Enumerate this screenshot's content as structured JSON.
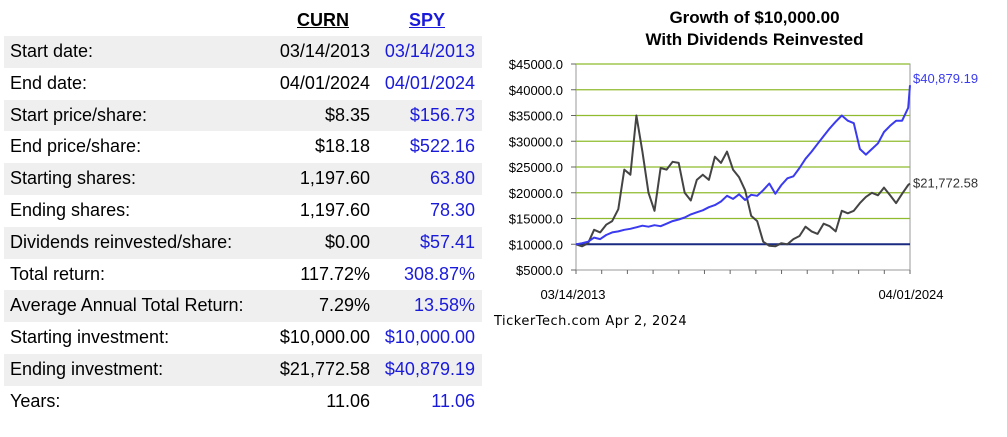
{
  "table": {
    "col1_header": "CURN",
    "col2_header": "SPY",
    "rows": [
      {
        "label": "Start date:",
        "v1": "03/14/2013",
        "v2": "03/14/2013"
      },
      {
        "label": "End date:",
        "v1": "04/01/2024",
        "v2": "04/01/2024"
      },
      {
        "label": "Start price/share:",
        "v1": "$8.35",
        "v2": "$156.73"
      },
      {
        "label": "End price/share:",
        "v1": "$18.18",
        "v2": "$522.16"
      },
      {
        "label": "Starting shares:",
        "v1": "1,197.60",
        "v2": "63.80"
      },
      {
        "label": "Ending shares:",
        "v1": "1,197.60",
        "v2": "78.30"
      },
      {
        "label": "Dividends reinvested/share:",
        "v1": "$0.00",
        "v2": "$57.41"
      },
      {
        "label": "Total return:",
        "v1": "117.72%",
        "v2": "308.87%"
      },
      {
        "label": "Average Annual Total Return:",
        "v1": "7.29%",
        "v2": "13.58%"
      },
      {
        "label": "Starting investment:",
        "v1": "$10,000.00",
        "v2": "$10,000.00"
      },
      {
        "label": "Ending investment:",
        "v1": "$21,772.58",
        "v2": "$40,879.19"
      },
      {
        "label": "Years:",
        "v1": "11.06",
        "v2": "11.06"
      }
    ]
  },
  "chart": {
    "title_line1": "Growth of $10,000.00",
    "title_line2": "With Dividends Reinvested",
    "credit": "TickerTech.com  Apr 2, 2024",
    "x_start_label": "03/14/2013",
    "x_end_label": "04/01/2024"
  },
  "colors": {
    "curn": "#444444",
    "spy": "#3a3af0",
    "grid": "#8fbc2e",
    "baseline": "#1a2a80"
  },
  "chart_data": {
    "type": "line",
    "title": "Growth of $10,000.00 With Dividends Reinvested",
    "ylim": [
      5000,
      45000
    ],
    "yticks": [
      "$45000.0",
      "$40000.0",
      "$35000.0",
      "$30000.0",
      "$25000.0",
      "$20000.0",
      "$15000.0",
      "$10000.0",
      "$5000.0"
    ],
    "ytick_values": [
      45000,
      40000,
      35000,
      30000,
      25000,
      20000,
      15000,
      10000,
      5000
    ],
    "xlim": [
      0,
      11.06
    ],
    "x": [
      0,
      0.2,
      0.4,
      0.6,
      0.8,
      1.0,
      1.2,
      1.4,
      1.6,
      1.8,
      2.0,
      2.2,
      2.4,
      2.6,
      2.8,
      3.0,
      3.2,
      3.4,
      3.6,
      3.8,
      4.0,
      4.2,
      4.4,
      4.6,
      4.8,
      5.0,
      5.2,
      5.4,
      5.6,
      5.8,
      6.0,
      6.2,
      6.4,
      6.6,
      6.8,
      7.0,
      7.2,
      7.4,
      7.6,
      7.8,
      8.0,
      8.2,
      8.4,
      8.6,
      8.8,
      9.0,
      9.2,
      9.4,
      9.6,
      9.8,
      10.0,
      10.2,
      10.4,
      10.6,
      10.8,
      11.0,
      11.06
    ],
    "series": [
      {
        "name": "CURN",
        "end_label": "$21,772.58",
        "values": [
          10000,
          9600,
          10200,
          12800,
          12300,
          13800,
          14500,
          16800,
          24500,
          23500,
          35000,
          28000,
          20000,
          16500,
          24800,
          24500,
          26000,
          25800,
          20000,
          18500,
          22500,
          23500,
          22500,
          27000,
          25800,
          28000,
          24500,
          23000,
          20500,
          15500,
          14500,
          10500,
          9700,
          9600,
          10200,
          10000,
          11000,
          11600,
          13400,
          12500,
          12000,
          14000,
          13500,
          12500,
          16500,
          16000,
          16500,
          18000,
          19200,
          20000,
          19500,
          21000,
          19500,
          18000,
          19800,
          21500,
          21772
        ]
      },
      {
        "name": "SPY",
        "end_label": "$40,879.19",
        "values": [
          10000,
          10200,
          10500,
          11300,
          11000,
          11800,
          12300,
          12500,
          12800,
          13000,
          13300,
          13600,
          13400,
          13700,
          13500,
          14000,
          14500,
          14800,
          15200,
          15800,
          16200,
          16600,
          17200,
          17600,
          18300,
          19400,
          18800,
          19700,
          18600,
          19600,
          19400,
          20500,
          21800,
          19800,
          21500,
          22800,
          23200,
          24800,
          26600,
          28000,
          29500,
          31000,
          32500,
          33800,
          35000,
          34000,
          33500,
          28500,
          27400,
          28500,
          29600,
          31800,
          33000,
          34000,
          34000,
          36500,
          40879
        ]
      }
    ]
  }
}
